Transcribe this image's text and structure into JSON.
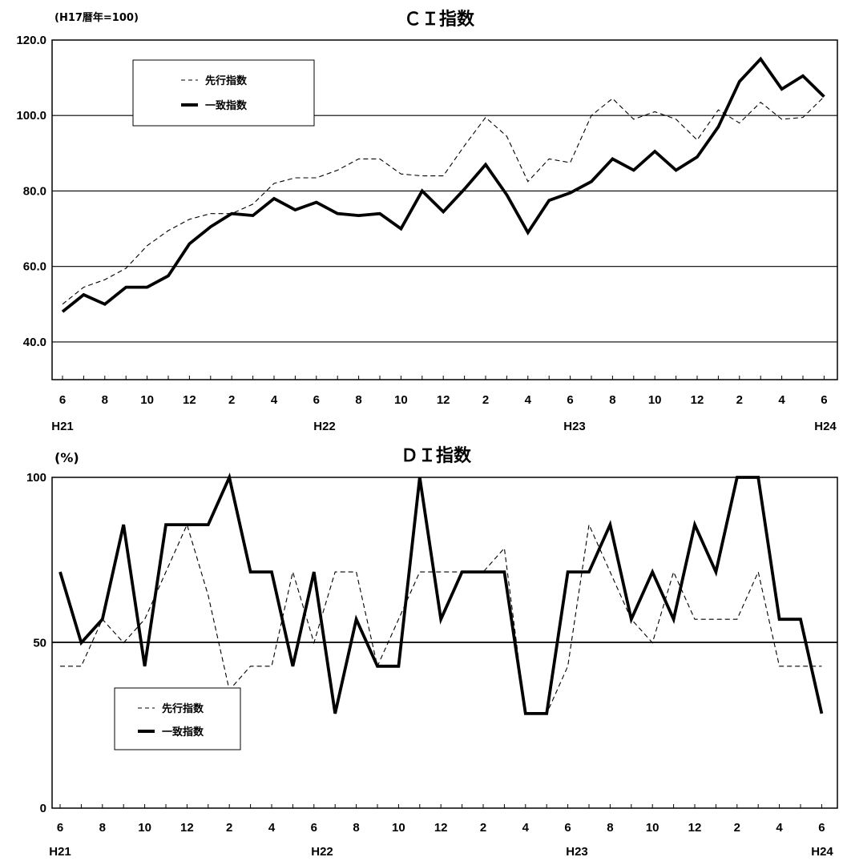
{
  "chart_data": [
    {
      "type": "line",
      "title": "ＣＩ指数",
      "unit_label": "(H17暦年=100)",
      "ylim": [
        30,
        120
      ],
      "yticks": [
        "40.0",
        "60.0",
        "80.0",
        "100.0",
        "120.0"
      ],
      "grid": true,
      "legend_placement": "top-left",
      "x": [
        "H21-6",
        "H21-7",
        "H21-8",
        "H21-9",
        "H21-10",
        "H21-11",
        "H21-12",
        "H22-1",
        "H22-2",
        "H22-3",
        "H22-4",
        "H22-5",
        "H22-6",
        "H22-7",
        "H22-8",
        "H22-9",
        "H22-10",
        "H22-11",
        "H22-12",
        "H23-1",
        "H23-2",
        "H23-3",
        "H23-4",
        "H23-5",
        "H23-6",
        "H23-7",
        "H23-8",
        "H23-9",
        "H23-10",
        "H23-11",
        "H23-12",
        "H24-1",
        "H24-2",
        "H24-3",
        "H24-4",
        "H24-5",
        "H24-6"
      ],
      "x_tick_labels": [
        "6",
        "8",
        "10",
        "12",
        "2",
        "4",
        "6",
        "8",
        "10",
        "12",
        "2",
        "4",
        "6",
        "8",
        "10",
        "12",
        "2",
        "4",
        "6"
      ],
      "year_labels": [
        "H21",
        "H22",
        "H23",
        "H24"
      ],
      "series": [
        {
          "name": "先行指数",
          "style": "dashed",
          "values": [
            50.0,
            54.5,
            56.5,
            59.5,
            65.5,
            69.5,
            72.5,
            74.0,
            74.0,
            76.5,
            82.0,
            83.5,
            83.5,
            85.5,
            88.5,
            88.5,
            84.5,
            84.0,
            84.0,
            92.0,
            99.5,
            94.5,
            82.5,
            88.5,
            87.5,
            100.0,
            104.5,
            99.0,
            101.0,
            99.0,
            93.5,
            101.5,
            98.0,
            103.5,
            99.0,
            99.5,
            105.0
          ]
        },
        {
          "name": "一致指数",
          "style": "solid",
          "values": [
            48.0,
            52.5,
            50.0,
            54.5,
            54.5,
            57.5,
            66.0,
            70.5,
            74.0,
            73.5,
            78.0,
            75.0,
            77.0,
            74.0,
            73.5,
            74.0,
            70.0,
            80.0,
            74.5,
            80.5,
            87.0,
            79.0,
            69.0,
            77.5,
            79.5,
            82.5,
            88.5,
            85.5,
            90.5,
            85.5,
            89.0,
            97.0,
            109.0,
            115.0,
            107.0,
            110.5,
            105.0
          ]
        }
      ]
    },
    {
      "type": "line",
      "title": "ＤＩ指数",
      "unit_label": "(%)",
      "ylim": [
        0,
        100
      ],
      "yticks": [
        "0",
        "50",
        "100"
      ],
      "reference_line": 50,
      "legend_placement": "bottom-left",
      "x": [
        "H21-6",
        "H21-7",
        "H21-8",
        "H21-9",
        "H21-10",
        "H21-11",
        "H21-12",
        "H22-1",
        "H22-2",
        "H22-3",
        "H22-4",
        "H22-5",
        "H22-6",
        "H22-7",
        "H22-8",
        "H22-9",
        "H22-10",
        "H22-11",
        "H22-12",
        "H23-1",
        "H23-2",
        "H23-3",
        "H23-4",
        "H23-5",
        "H23-6",
        "H23-7",
        "H23-8",
        "H23-9",
        "H23-10",
        "H23-11",
        "H23-12",
        "H24-1",
        "H24-2",
        "H24-3",
        "H24-4",
        "H24-5",
        "H24-6"
      ],
      "x_tick_labels": [
        "6",
        "8",
        "10",
        "12",
        "2",
        "4",
        "6",
        "8",
        "10",
        "12",
        "2",
        "4",
        "6",
        "8",
        "10",
        "12",
        "2",
        "4",
        "6"
      ],
      "year_labels": [
        "H21",
        "H22",
        "H23",
        "H24"
      ],
      "series": [
        {
          "name": "先行指数",
          "style": "dashed",
          "values": [
            42.9,
            42.9,
            57.1,
            50.0,
            57.1,
            71.4,
            85.7,
            64.3,
            35.7,
            42.9,
            42.9,
            71.4,
            50.0,
            71.4,
            71.4,
            42.9,
            57.1,
            71.4,
            71.4,
            71.4,
            71.4,
            78.6,
            28.6,
            28.6,
            42.9,
            85.7,
            71.4,
            57.1,
            50.0,
            71.4,
            57.1,
            57.1,
            57.1,
            71.4,
            42.9,
            42.9,
            42.9
          ]
        },
        {
          "name": "一致指数",
          "style": "solid",
          "values": [
            71.4,
            50.0,
            57.1,
            85.7,
            42.9,
            85.7,
            85.7,
            85.7,
            100.0,
            71.4,
            71.4,
            42.9,
            71.4,
            28.6,
            57.1,
            42.9,
            42.9,
            100.0,
            57.1,
            71.4,
            71.4,
            71.4,
            28.6,
            28.6,
            71.4,
            71.4,
            85.7,
            57.1,
            71.4,
            57.1,
            85.7,
            71.4,
            100.0,
            100.0,
            57.1,
            57.1,
            28.6
          ]
        }
      ]
    }
  ]
}
